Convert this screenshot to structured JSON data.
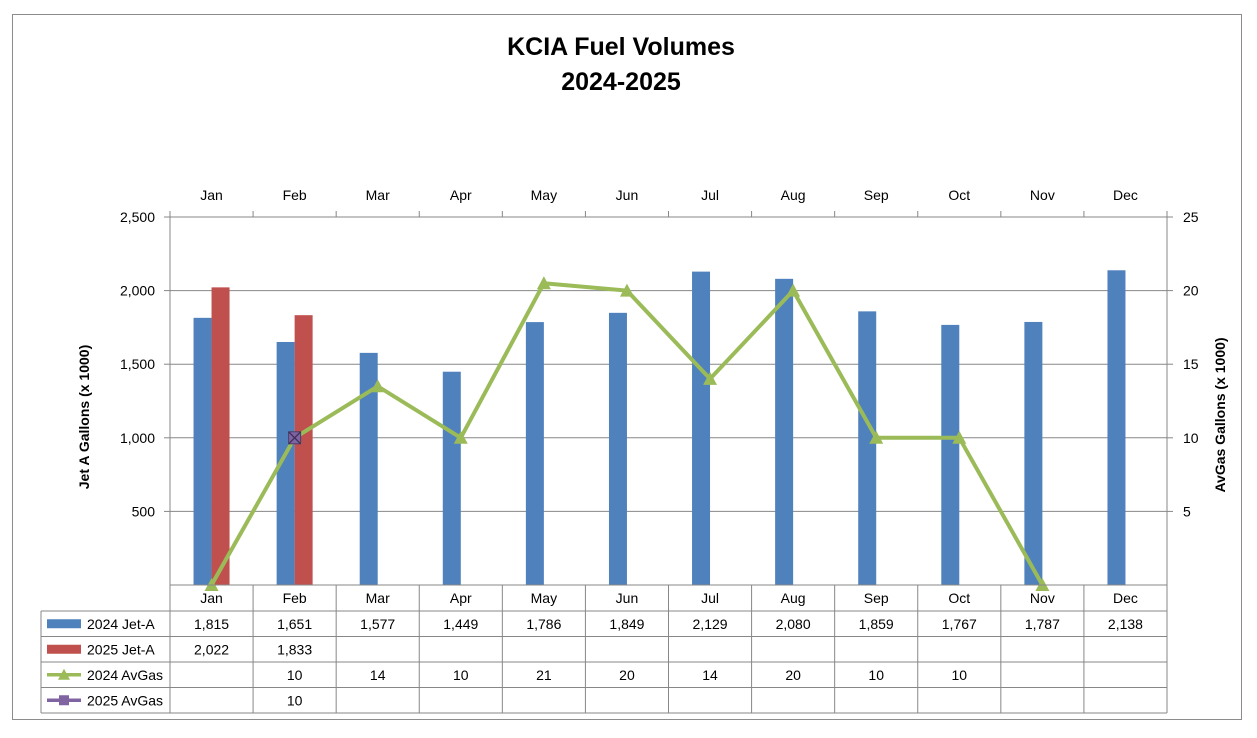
{
  "chart_data": {
    "type": "bar",
    "title": [
      "KCIA Fuel Volumes",
      "2024-2025"
    ],
    "categories": [
      "Jan",
      "Feb",
      "Mar",
      "Apr",
      "May",
      "Jun",
      "Jul",
      "Aug",
      "Sep",
      "Oct",
      "Nov",
      "Dec"
    ],
    "ylabel": "Jet A Gallons (x 1000)",
    "y2label": "AvGas Gallons (x 1000)",
    "ylim": [
      0,
      2500
    ],
    "yticks": [
      500,
      1000,
      1500,
      2000,
      2500
    ],
    "yticklabels": [
      "500",
      "1,000",
      "1,500",
      "2,000",
      "2,500"
    ],
    "y2lim": [
      0,
      25
    ],
    "y2ticks": [
      5,
      10,
      15,
      20,
      25
    ],
    "y2ticklabels": [
      "5",
      "10",
      "15",
      "20",
      "25"
    ],
    "grid": true,
    "legend": "data-table-below",
    "series": [
      {
        "name": "2024 Jet-A",
        "type": "bar",
        "axis": "left",
        "color": "#4f81bd",
        "values": [
          1815,
          1651,
          1577,
          1449,
          1786,
          1849,
          2129,
          2080,
          1859,
          1767,
          1787,
          2138
        ],
        "labels": [
          "1,815",
          "1,651",
          "1,577",
          "1,449",
          "1,786",
          "1,849",
          "2,129",
          "2,080",
          "1,859",
          "1,767",
          "1,787",
          "2,138"
        ]
      },
      {
        "name": "2025 Jet-A",
        "type": "bar",
        "axis": "left",
        "color": "#c0504d",
        "values": [
          2022,
          1833,
          null,
          null,
          null,
          null,
          null,
          null,
          null,
          null,
          null,
          null
        ],
        "labels": [
          "2,022",
          "1,833",
          "",
          "",
          "",
          "",
          "",
          "",
          "",
          "",
          "",
          ""
        ]
      },
      {
        "name": "2024 AvGas",
        "type": "line",
        "marker": "triangle",
        "axis": "right",
        "color": "#9bbb59",
        "values": [
          0,
          10,
          13.5,
          10,
          20.5,
          20,
          14,
          20,
          10,
          10,
          0,
          null
        ],
        "labels": [
          "",
          "10",
          "14",
          "10",
          "21",
          "20",
          "14",
          "20",
          "10",
          "10",
          "",
          ""
        ]
      },
      {
        "name": "2025 AvGas",
        "type": "line",
        "marker": "square",
        "axis": "right",
        "color": "#8064a2",
        "values": [
          null,
          10,
          null,
          null,
          null,
          null,
          null,
          null,
          null,
          null,
          null,
          null
        ],
        "labels": [
          "",
          "10",
          "",
          "",
          "",
          "",
          "",
          "",
          "",
          "",
          "",
          ""
        ]
      }
    ]
  }
}
